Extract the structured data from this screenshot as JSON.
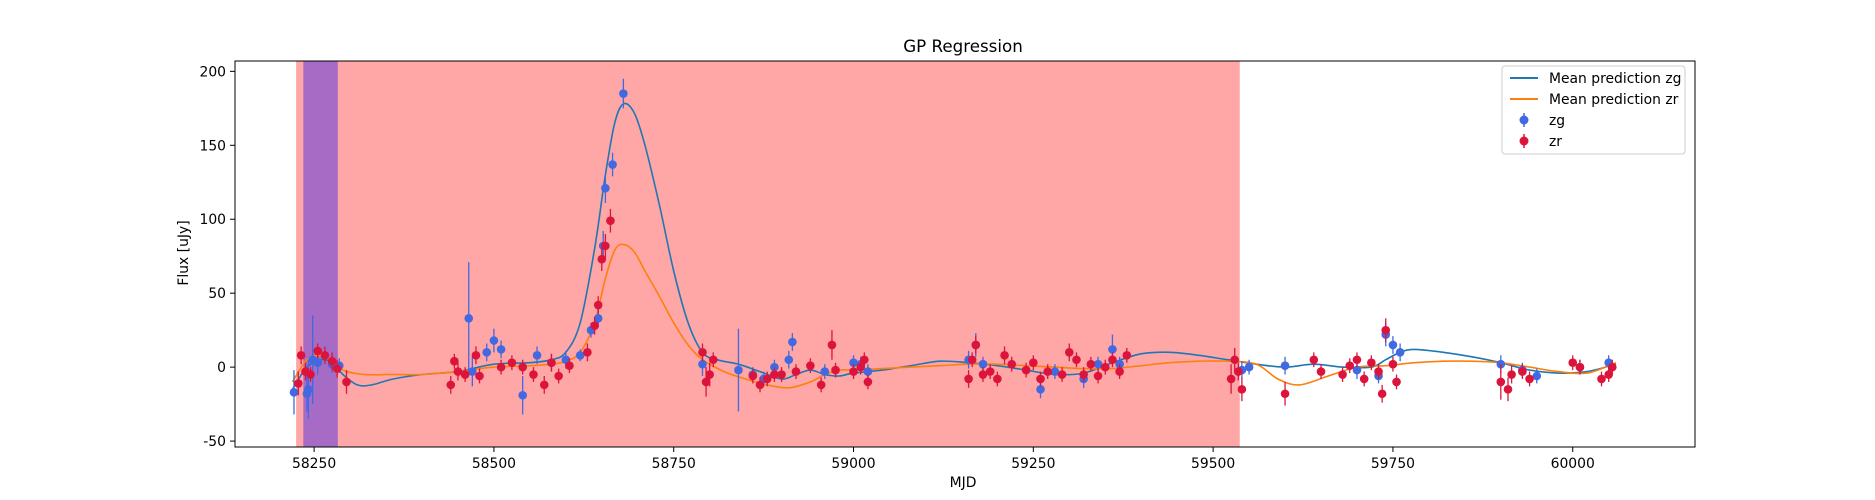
{
  "chart_data": {
    "type": "scatter",
    "title": "GP Regression",
    "xlabel": "MJD",
    "ylabel": "Flux [uJy]",
    "xlim": [
      58140,
      60170
    ],
    "ylim": [
      -54,
      207
    ],
    "xticks": [
      58250,
      58500,
      58750,
      59000,
      59250,
      59500,
      59750,
      60000
    ],
    "yticks": [
      -50,
      0,
      50,
      100,
      150,
      200
    ],
    "legend_position": "upper right",
    "shaded_regions": [
      {
        "x0": 58225,
        "x1": 59537,
        "color": "#ff0000",
        "alpha": 0.35
      },
      {
        "x0": 58235,
        "x1": 58283,
        "color": "#0000ff",
        "alpha": 0.35
      }
    ],
    "series": [
      {
        "name": "Mean prediction zg",
        "kind": "line",
        "color": "#1f77b4",
        "x": [
          58220,
          58240,
          58260,
          58275,
          58290,
          58310,
          58330,
          58360,
          58400,
          58450,
          58500,
          58550,
          58580,
          58600,
          58620,
          58640,
          58655,
          58668,
          58680,
          58695,
          58710,
          58730,
          58750,
          58770,
          58790,
          58810,
          58840,
          58870,
          58900,
          58920,
          58940,
          58960,
          58980,
          59000,
          59040,
          59080,
          59120,
          59160,
          59200,
          59240,
          59280,
          59320,
          59360,
          59400,
          59440,
          59480,
          59520,
          59560,
          59600,
          59640,
          59680,
          59720,
          59740,
          59760,
          59780,
          59820,
          59860,
          59900,
          59940,
          59980,
          60020,
          60060
        ],
        "y": [
          -15,
          0,
          5,
          3,
          -5,
          -12,
          -12,
          -8,
          -5,
          -3,
          2,
          3,
          5,
          10,
          30,
          80,
          130,
          165,
          178,
          172,
          150,
          110,
          65,
          30,
          10,
          5,
          2,
          -3,
          -8,
          -5,
          -2,
          -5,
          -6,
          -4,
          -2,
          1,
          4,
          3,
          1,
          -2,
          -5,
          -4,
          3,
          9,
          10,
          8,
          5,
          2,
          0,
          2,
          0,
          0,
          5,
          10,
          12,
          10,
          7,
          3,
          -2,
          -4,
          -3,
          2
        ]
      },
      {
        "name": "Mean prediction zr",
        "kind": "line",
        "color": "#ff7f0e",
        "x": [
          58220,
          58240,
          58260,
          58275,
          58290,
          58320,
          58360,
          58400,
          58450,
          58500,
          58550,
          58580,
          58600,
          58620,
          58640,
          58655,
          58668,
          58680,
          58695,
          58710,
          58730,
          58750,
          58770,
          58790,
          58820,
          58850,
          58880,
          58910,
          58940,
          58960,
          58980,
          59000,
          59040,
          59080,
          59120,
          59160,
          59200,
          59240,
          59280,
          59320,
          59360,
          59400,
          59440,
          59480,
          59520,
          59560,
          59590,
          59620,
          59660,
          59700,
          59740,
          59780,
          59820,
          59860,
          59900,
          59940,
          59980,
          60020,
          60060
        ],
        "y": [
          -10,
          5,
          8,
          4,
          -2,
          -5,
          -5,
          -5,
          -3,
          0,
          1,
          2,
          4,
          10,
          30,
          60,
          79,
          83,
          78,
          65,
          48,
          30,
          15,
          5,
          -3,
          -8,
          -12,
          -14,
          -10,
          -5,
          -2,
          -2,
          -1,
          0,
          1,
          2,
          2,
          1,
          0,
          -1,
          -1,
          1,
          3,
          4,
          4,
          2,
          -8,
          -12,
          -6,
          0,
          1,
          3,
          4,
          4,
          3,
          0,
          -3,
          -4,
          3
        ]
      },
      {
        "name": "zg",
        "kind": "errorbar",
        "color": "#4169e1",
        "points": [
          [
            58222,
            -17,
            15
          ],
          [
            58240,
            -18,
            12
          ],
          [
            58242,
            -15,
            20
          ],
          [
            58248,
            5,
            30
          ],
          [
            58255,
            3,
            8
          ],
          [
            58275,
            2,
            6
          ],
          [
            58285,
            1,
            5
          ],
          [
            58465,
            33,
            38
          ],
          [
            58470,
            -3,
            10
          ],
          [
            58490,
            10,
            6
          ],
          [
            58500,
            18,
            8
          ],
          [
            58510,
            12,
            6
          ],
          [
            58540,
            -19,
            13
          ],
          [
            58560,
            8,
            6
          ],
          [
            58580,
            3,
            6
          ],
          [
            58600,
            5,
            6
          ],
          [
            58620,
            8,
            4
          ],
          [
            58635,
            25,
            5
          ],
          [
            58645,
            33,
            6
          ],
          [
            58652,
            82,
            10
          ],
          [
            58655,
            121,
            10
          ],
          [
            58665,
            137,
            8
          ],
          [
            58680,
            185,
            10
          ],
          [
            58790,
            2,
            8
          ],
          [
            58840,
            -2,
            28
          ],
          [
            58860,
            -5,
            5
          ],
          [
            58875,
            -8,
            5
          ],
          [
            58890,
            0,
            5
          ],
          [
            58910,
            5,
            6
          ],
          [
            58915,
            17,
            6
          ],
          [
            58960,
            -3,
            5
          ],
          [
            59000,
            3,
            5
          ],
          [
            59010,
            2,
            5
          ],
          [
            59020,
            -3,
            5
          ],
          [
            59160,
            5,
            6
          ],
          [
            59170,
            15,
            8
          ],
          [
            59180,
            2,
            5
          ],
          [
            59260,
            -15,
            6
          ],
          [
            59280,
            -3,
            5
          ],
          [
            59320,
            -8,
            6
          ],
          [
            59340,
            2,
            5
          ],
          [
            59360,
            12,
            10
          ],
          [
            59370,
            2,
            5
          ],
          [
            59540,
            -2,
            6
          ],
          [
            59550,
            0,
            5
          ],
          [
            59600,
            1,
            6
          ],
          [
            59700,
            -2,
            6
          ],
          [
            59730,
            -6,
            5
          ],
          [
            59740,
            22,
            8
          ],
          [
            59750,
            15,
            6
          ],
          [
            59760,
            10,
            6
          ],
          [
            59900,
            2,
            6
          ],
          [
            59930,
            -2,
            5
          ],
          [
            59950,
            -6,
            5
          ],
          [
            60010,
            0,
            5
          ],
          [
            60050,
            3,
            5
          ]
        ]
      },
      {
        "name": "zr",
        "kind": "errorbar",
        "color": "#dc143c",
        "points": [
          [
            58228,
            -11,
            8
          ],
          [
            58232,
            8,
            6
          ],
          [
            58238,
            -3,
            6
          ],
          [
            58245,
            -5,
            5
          ],
          [
            58255,
            11,
            5
          ],
          [
            58265,
            8,
            6
          ],
          [
            58275,
            4,
            6
          ],
          [
            58282,
            -1,
            6
          ],
          [
            58295,
            -10,
            8
          ],
          [
            58440,
            -12,
            6
          ],
          [
            58445,
            4,
            5
          ],
          [
            58450,
            -3,
            6
          ],
          [
            58460,
            -5,
            5
          ],
          [
            58475,
            8,
            6
          ],
          [
            58480,
            -6,
            5
          ],
          [
            58510,
            0,
            5
          ],
          [
            58525,
            3,
            5
          ],
          [
            58540,
            0,
            5
          ],
          [
            58555,
            -5,
            5
          ],
          [
            58570,
            -12,
            6
          ],
          [
            58580,
            3,
            6
          ],
          [
            58590,
            -6,
            5
          ],
          [
            58605,
            1,
            5
          ],
          [
            58630,
            10,
            6
          ],
          [
            58640,
            28,
            6
          ],
          [
            58645,
            42,
            6
          ],
          [
            58650,
            73,
            8
          ],
          [
            58655,
            82,
            8
          ],
          [
            58662,
            99,
            8
          ],
          [
            58790,
            10,
            6
          ],
          [
            58795,
            -10,
            10
          ],
          [
            58800,
            -5,
            8
          ],
          [
            58805,
            5,
            5
          ],
          [
            58860,
            -6,
            5
          ],
          [
            58870,
            -12,
            5
          ],
          [
            58880,
            -8,
            5
          ],
          [
            58890,
            -5,
            5
          ],
          [
            58900,
            -5,
            5
          ],
          [
            58920,
            -3,
            5
          ],
          [
            58940,
            1,
            5
          ],
          [
            58955,
            -12,
            5
          ],
          [
            58970,
            15,
            10
          ],
          [
            58975,
            -2,
            5
          ],
          [
            59000,
            -3,
            5
          ],
          [
            59010,
            0,
            5
          ],
          [
            59015,
            5,
            5
          ],
          [
            59020,
            -10,
            5
          ],
          [
            59160,
            -8,
            6
          ],
          [
            59165,
            5,
            5
          ],
          [
            59170,
            15,
            6
          ],
          [
            59180,
            -5,
            5
          ],
          [
            59190,
            -3,
            5
          ],
          [
            59200,
            -8,
            5
          ],
          [
            59210,
            8,
            6
          ],
          [
            59220,
            2,
            5
          ],
          [
            59240,
            -2,
            5
          ],
          [
            59250,
            3,
            5
          ],
          [
            59260,
            -8,
            5
          ],
          [
            59270,
            -3,
            5
          ],
          [
            59290,
            -5,
            5
          ],
          [
            59300,
            10,
            6
          ],
          [
            59310,
            5,
            5
          ],
          [
            59320,
            -5,
            5
          ],
          [
            59330,
            2,
            5
          ],
          [
            59340,
            -6,
            5
          ],
          [
            59350,
            0,
            5
          ],
          [
            59360,
            5,
            5
          ],
          [
            59370,
            -3,
            5
          ],
          [
            59380,
            8,
            5
          ],
          [
            59525,
            -8,
            10
          ],
          [
            59530,
            5,
            8
          ],
          [
            59535,
            -3,
            6
          ],
          [
            59540,
            -15,
            8
          ],
          [
            59600,
            -18,
            8
          ],
          [
            59640,
            5,
            5
          ],
          [
            59650,
            -3,
            5
          ],
          [
            59680,
            -5,
            5
          ],
          [
            59690,
            1,
            5
          ],
          [
            59700,
            5,
            5
          ],
          [
            59710,
            -8,
            5
          ],
          [
            59720,
            3,
            5
          ],
          [
            59730,
            -3,
            5
          ],
          [
            59735,
            -18,
            6
          ],
          [
            59740,
            25,
            8
          ],
          [
            59750,
            2,
            5
          ],
          [
            59755,
            -10,
            5
          ],
          [
            59900,
            -10,
            12
          ],
          [
            59910,
            -15,
            8
          ],
          [
            59915,
            -5,
            6
          ],
          [
            59930,
            -3,
            5
          ],
          [
            59940,
            -8,
            5
          ],
          [
            60000,
            3,
            5
          ],
          [
            60010,
            0,
            5
          ],
          [
            60040,
            -8,
            5
          ],
          [
            60050,
            -5,
            5
          ],
          [
            60055,
            0,
            5
          ]
        ]
      }
    ]
  }
}
